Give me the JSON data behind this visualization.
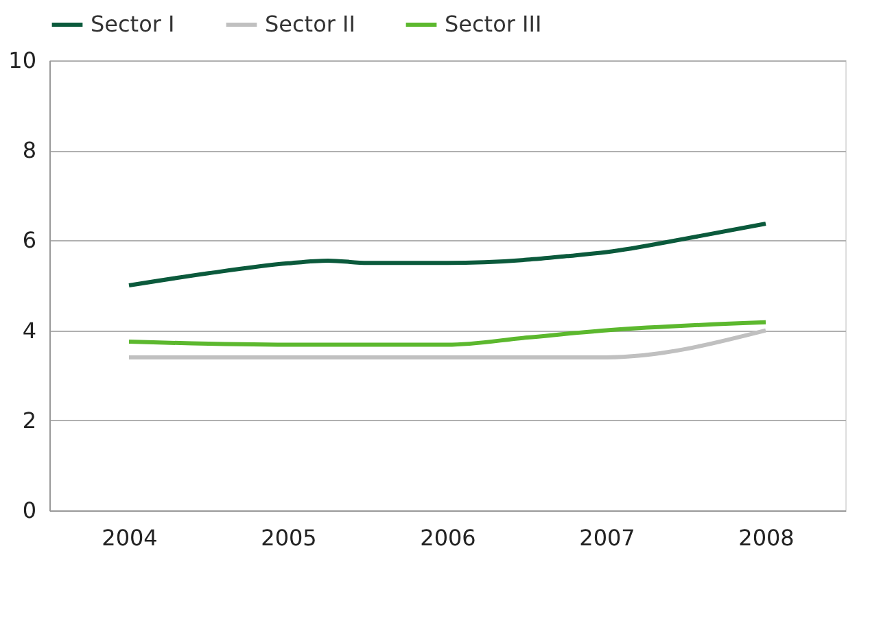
{
  "chart_data": {
    "type": "line",
    "xlim": [
      2003.5,
      2008.5
    ],
    "xticks": [
      2004,
      2005,
      2006,
      2007,
      2008
    ],
    "ylim": [
      0,
      10
    ],
    "yticks": [
      0,
      2,
      4,
      6,
      8,
      10
    ],
    "grid": "y",
    "legend": "top",
    "marker": "none",
    "line_style": "solid",
    "series": [
      {
        "name": "Sector I",
        "color": "#0b5a3c",
        "x": [
          2004,
          2004.5,
          2005,
          2005.25,
          2005.5,
          2006,
          2006.5,
          2006.75,
          2007,
          2007.5,
          2008
        ],
        "values": [
          5.0,
          5.27,
          5.49,
          5.55,
          5.5,
          5.5,
          5.57,
          5.65,
          5.74,
          6.04,
          6.37
        ]
      },
      {
        "name": "Sector II",
        "color": "#c0c0c0",
        "x": [
          2004,
          2005,
          2006,
          2007,
          2008
        ],
        "values": [
          3.4,
          3.4,
          3.4,
          3.4,
          4.0
        ]
      },
      {
        "name": "Sector III",
        "color": "#5cb82e",
        "x": [
          2004,
          2005,
          2006,
          2006.5,
          2007,
          2008
        ],
        "values": [
          3.75,
          3.68,
          3.68,
          3.84,
          4.0,
          4.18
        ]
      }
    ]
  }
}
